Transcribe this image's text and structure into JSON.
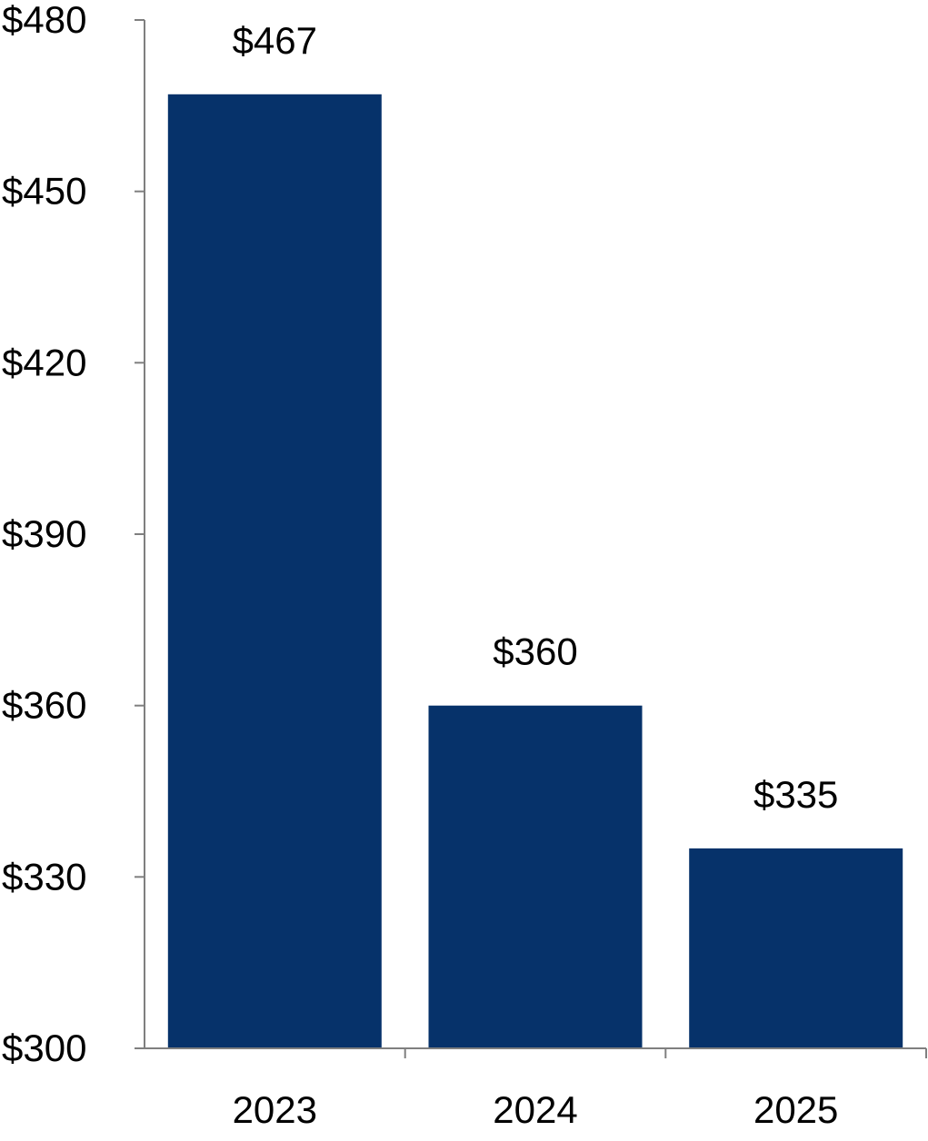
{
  "chart_data": {
    "type": "bar",
    "categories": [
      "2023",
      "2024",
      "2025"
    ],
    "values": [
      467,
      360,
      335
    ],
    "data_labels": [
      "$467",
      "$360",
      "$335"
    ],
    "title": "",
    "xlabel": "",
    "ylabel": "",
    "ylim": [
      300,
      480
    ],
    "yticks": [
      300,
      330,
      360,
      390,
      420,
      450,
      480
    ],
    "ytick_labels": [
      "$300",
      "$330",
      "$360",
      "$390",
      "$420",
      "$450",
      "$480"
    ],
    "grid": false,
    "legend": "none",
    "bar_color": "#06326a",
    "axis_color": "#7f7f7f"
  }
}
